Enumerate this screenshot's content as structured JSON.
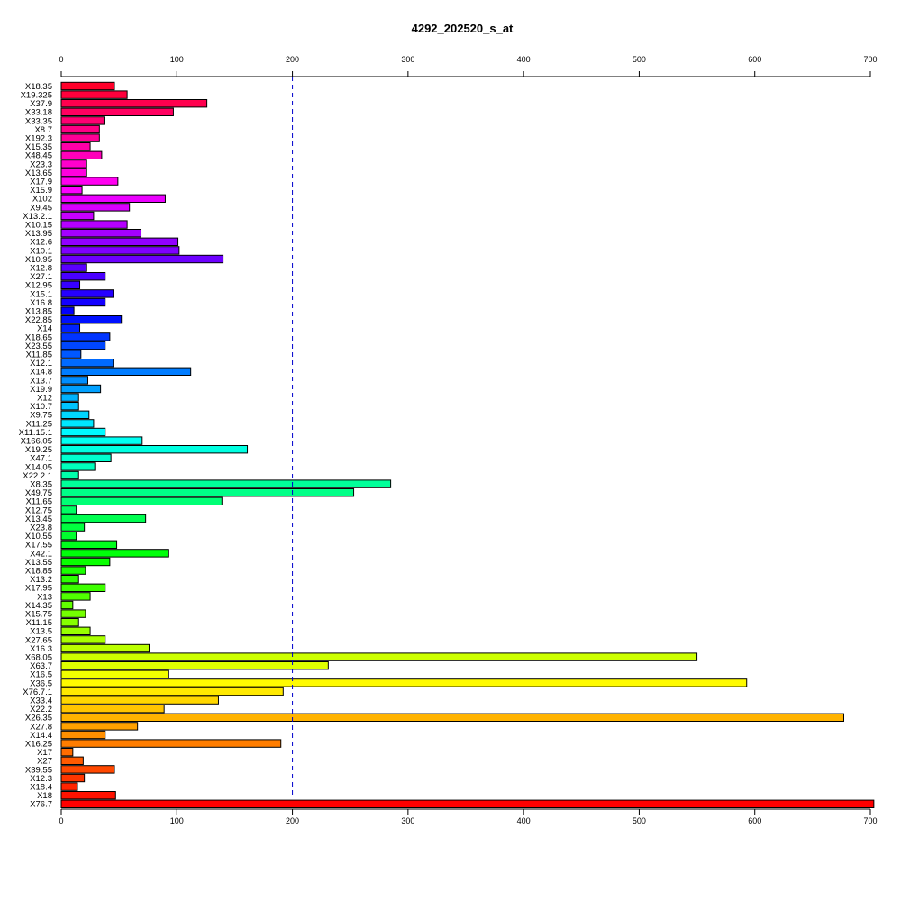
{
  "chart_data": {
    "type": "bar",
    "orientation": "horizontal",
    "title": "4292_202520_s_at",
    "xlabel": "",
    "ylabel": "",
    "xlim": [
      0,
      700
    ],
    "x_ticks": [
      0,
      100,
      200,
      300,
      400,
      500,
      600,
      700
    ],
    "reference_line": 200,
    "reference_line_color": "#0000cc",
    "color_scheme": "rainbow (red to red)",
    "categories": [
      "X18.35",
      "X19.325",
      "X37.9",
      "X33.18",
      "X33.35",
      "X8.7",
      "X192.3",
      "X15.35",
      "X48.45",
      "X23.3",
      "X13.65",
      "X17.9",
      "X15.9",
      "X102",
      "X9.45",
      "X13.2.1",
      "X10.15",
      "X13.95",
      "X12.6",
      "X10.1",
      "X10.95",
      "X12.8",
      "X27.1",
      "X12.95",
      "X15.1",
      "X16.8",
      "X13.85",
      "X22.85",
      "X14",
      "X18.65",
      "X23.55",
      "X11.85",
      "X12.1",
      "X14.8",
      "X13.7",
      "X19.9",
      "X12",
      "X10.7",
      "X9.75",
      "X11.25",
      "X11.15.1",
      "X166.05",
      "X19.25",
      "X47.1",
      "X14.05",
      "X22.2.1",
      "X8.35",
      "X49.75",
      "X11.65",
      "X12.75",
      "X13.45",
      "X23.8",
      "X10.55",
      "X17.55",
      "X42.1",
      "X13.55",
      "X18.85",
      "X13.2",
      "X17.95",
      "X13",
      "X14.35",
      "X15.75",
      "X11.15",
      "X13.5",
      "X27.65",
      "X16.3",
      "X68.05",
      "X63.7",
      "X16.5",
      "X36.5",
      "X76.7.1",
      "X33.4",
      "X22.2",
      "X26.35",
      "X27.8",
      "X14.4",
      "X16.25",
      "X17",
      "X27",
      "X39.55",
      "X12.3",
      "X18.4",
      "X18",
      "X76.7"
    ],
    "values": [
      46,
      57,
      126,
      97,
      37,
      33,
      33,
      25,
      35,
      22,
      22,
      49,
      18,
      90,
      59,
      28,
      57,
      69,
      101,
      102,
      140,
      22,
      38,
      16,
      45,
      38,
      11,
      52,
      16,
      42,
      38,
      17,
      45,
      112,
      23,
      34,
      15,
      15,
      24,
      28,
      38,
      70,
      161,
      43,
      29,
      15,
      285,
      253,
      139,
      13,
      73,
      20,
      13,
      48,
      93,
      42,
      21,
      15,
      38,
      25,
      10,
      21,
      15,
      25,
      38,
      76,
      550,
      231,
      93,
      593,
      192,
      136,
      89,
      677,
      66,
      38,
      190,
      10,
      19,
      46,
      20,
      14,
      47,
      703
    ]
  }
}
